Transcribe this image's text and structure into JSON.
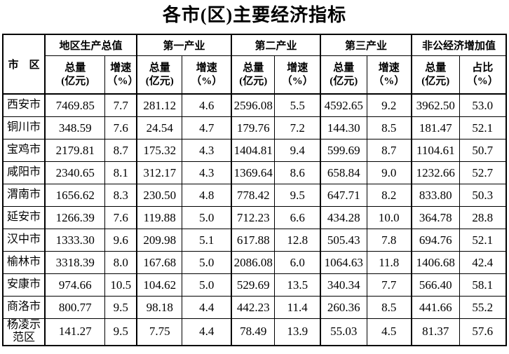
{
  "title": "各市(区)主要经济指标",
  "colors": {
    "text": "#000000",
    "border": "#000000",
    "background": "#ffffff"
  },
  "table": {
    "corner_header": "市　区",
    "groups": [
      {
        "title": "地区生产总值",
        "col1": "总量\n(亿元)",
        "col2": "增速\n（%）"
      },
      {
        "title": "第一产业",
        "col1": "总量\n(亿元)",
        "col2": "增速\n（%）"
      },
      {
        "title": "第二产业",
        "col1": "总量\n(亿元)",
        "col2": "增速\n（%）"
      },
      {
        "title": "第三产业",
        "col1": "总量\n(亿元)",
        "col2": "增速\n（%）"
      },
      {
        "title": "非公经济增加值",
        "col1": "总量\n(亿元)",
        "col2": "占比\n（%）"
      }
    ],
    "rows": [
      {
        "city": "西安市",
        "values": [
          "7469.85",
          "7.7",
          "281.12",
          "4.6",
          "2596.08",
          "5.5",
          "4592.65",
          "9.2",
          "3962.50",
          "53.0"
        ]
      },
      {
        "city": "铜川市",
        "values": [
          "348.59",
          "7.6",
          "24.54",
          "4.7",
          "179.76",
          "7.2",
          "144.30",
          "8.5",
          "181.47",
          "52.1"
        ]
      },
      {
        "city": "宝鸡市",
        "values": [
          "2179.81",
          "8.7",
          "175.32",
          "4.3",
          "1404.81",
          "9.4",
          "599.69",
          "8.7",
          "1104.61",
          "50.7"
        ]
      },
      {
        "city": "咸阳市",
        "values": [
          "2340.65",
          "8.1",
          "312.17",
          "4.3",
          "1369.64",
          "8.6",
          "658.84",
          "9.0",
          "1232.66",
          "52.7"
        ]
      },
      {
        "city": "渭南市",
        "values": [
          "1656.62",
          "8.3",
          "230.50",
          "4.8",
          "778.42",
          "9.5",
          "647.71",
          "8.2",
          "833.80",
          "50.3"
        ]
      },
      {
        "city": "延安市",
        "values": [
          "1266.39",
          "7.6",
          "119.88",
          "5.0",
          "712.23",
          "6.6",
          "434.28",
          "10.0",
          "364.78",
          "28.8"
        ]
      },
      {
        "city": "汉中市",
        "values": [
          "1333.30",
          "9.6",
          "209.98",
          "5.1",
          "617.88",
          "12.8",
          "505.43",
          "7.8",
          "694.76",
          "52.1"
        ]
      },
      {
        "city": "榆林市",
        "values": [
          "3318.39",
          "8.0",
          "167.68",
          "5.0",
          "2086.08",
          "6.0",
          "1064.63",
          "11.8",
          "1406.68",
          "42.4"
        ]
      },
      {
        "city": "安康市",
        "values": [
          "974.66",
          "10.5",
          "104.62",
          "5.0",
          "529.69",
          "13.5",
          "340.34",
          "7.7",
          "566.40",
          "58.1"
        ]
      },
      {
        "city": "商洛市",
        "values": [
          "800.77",
          "9.5",
          "98.18",
          "4.4",
          "442.23",
          "11.4",
          "260.36",
          "8.5",
          "441.66",
          "55.2"
        ]
      },
      {
        "city": "杨凌示范区",
        "values": [
          "141.27",
          "9.5",
          "7.75",
          "4.4",
          "78.49",
          "13.9",
          "55.03",
          "4.5",
          "81.37",
          "57.6"
        ]
      }
    ]
  }
}
